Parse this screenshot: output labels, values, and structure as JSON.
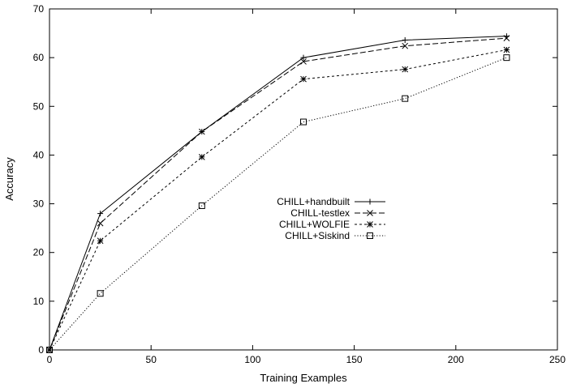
{
  "chart_data": {
    "type": "line",
    "xlabel": "Training Examples",
    "ylabel": "Accuracy",
    "xlim": [
      0,
      250
    ],
    "ylim": [
      0,
      70
    ],
    "xticks": [
      0,
      50,
      100,
      150,
      200,
      250
    ],
    "yticks": [
      0,
      10,
      20,
      30,
      40,
      50,
      60,
      70
    ],
    "grid": false,
    "legend_position": "center",
    "x": [
      0,
      25,
      75,
      125,
      175,
      225
    ],
    "series": [
      {
        "name": "CHILL+handbuilt",
        "marker": "plus",
        "dash": "solid",
        "values": [
          0,
          28,
          44.8,
          60,
          63.6,
          64.4
        ]
      },
      {
        "name": "CHILL-testlex",
        "marker": "cross",
        "dash": "dashed",
        "values": [
          0,
          26,
          44.8,
          59.2,
          62.4,
          64
        ]
      },
      {
        "name": "CHILL+WOLFIE",
        "marker": "star",
        "dash": "short-dashed",
        "values": [
          0,
          22.4,
          39.6,
          55.6,
          57.6,
          61.6
        ]
      },
      {
        "name": "CHILL+Siskind",
        "marker": "square",
        "dash": "dotted",
        "values": [
          0,
          11.6,
          29.6,
          46.8,
          51.6,
          60
        ]
      }
    ]
  }
}
